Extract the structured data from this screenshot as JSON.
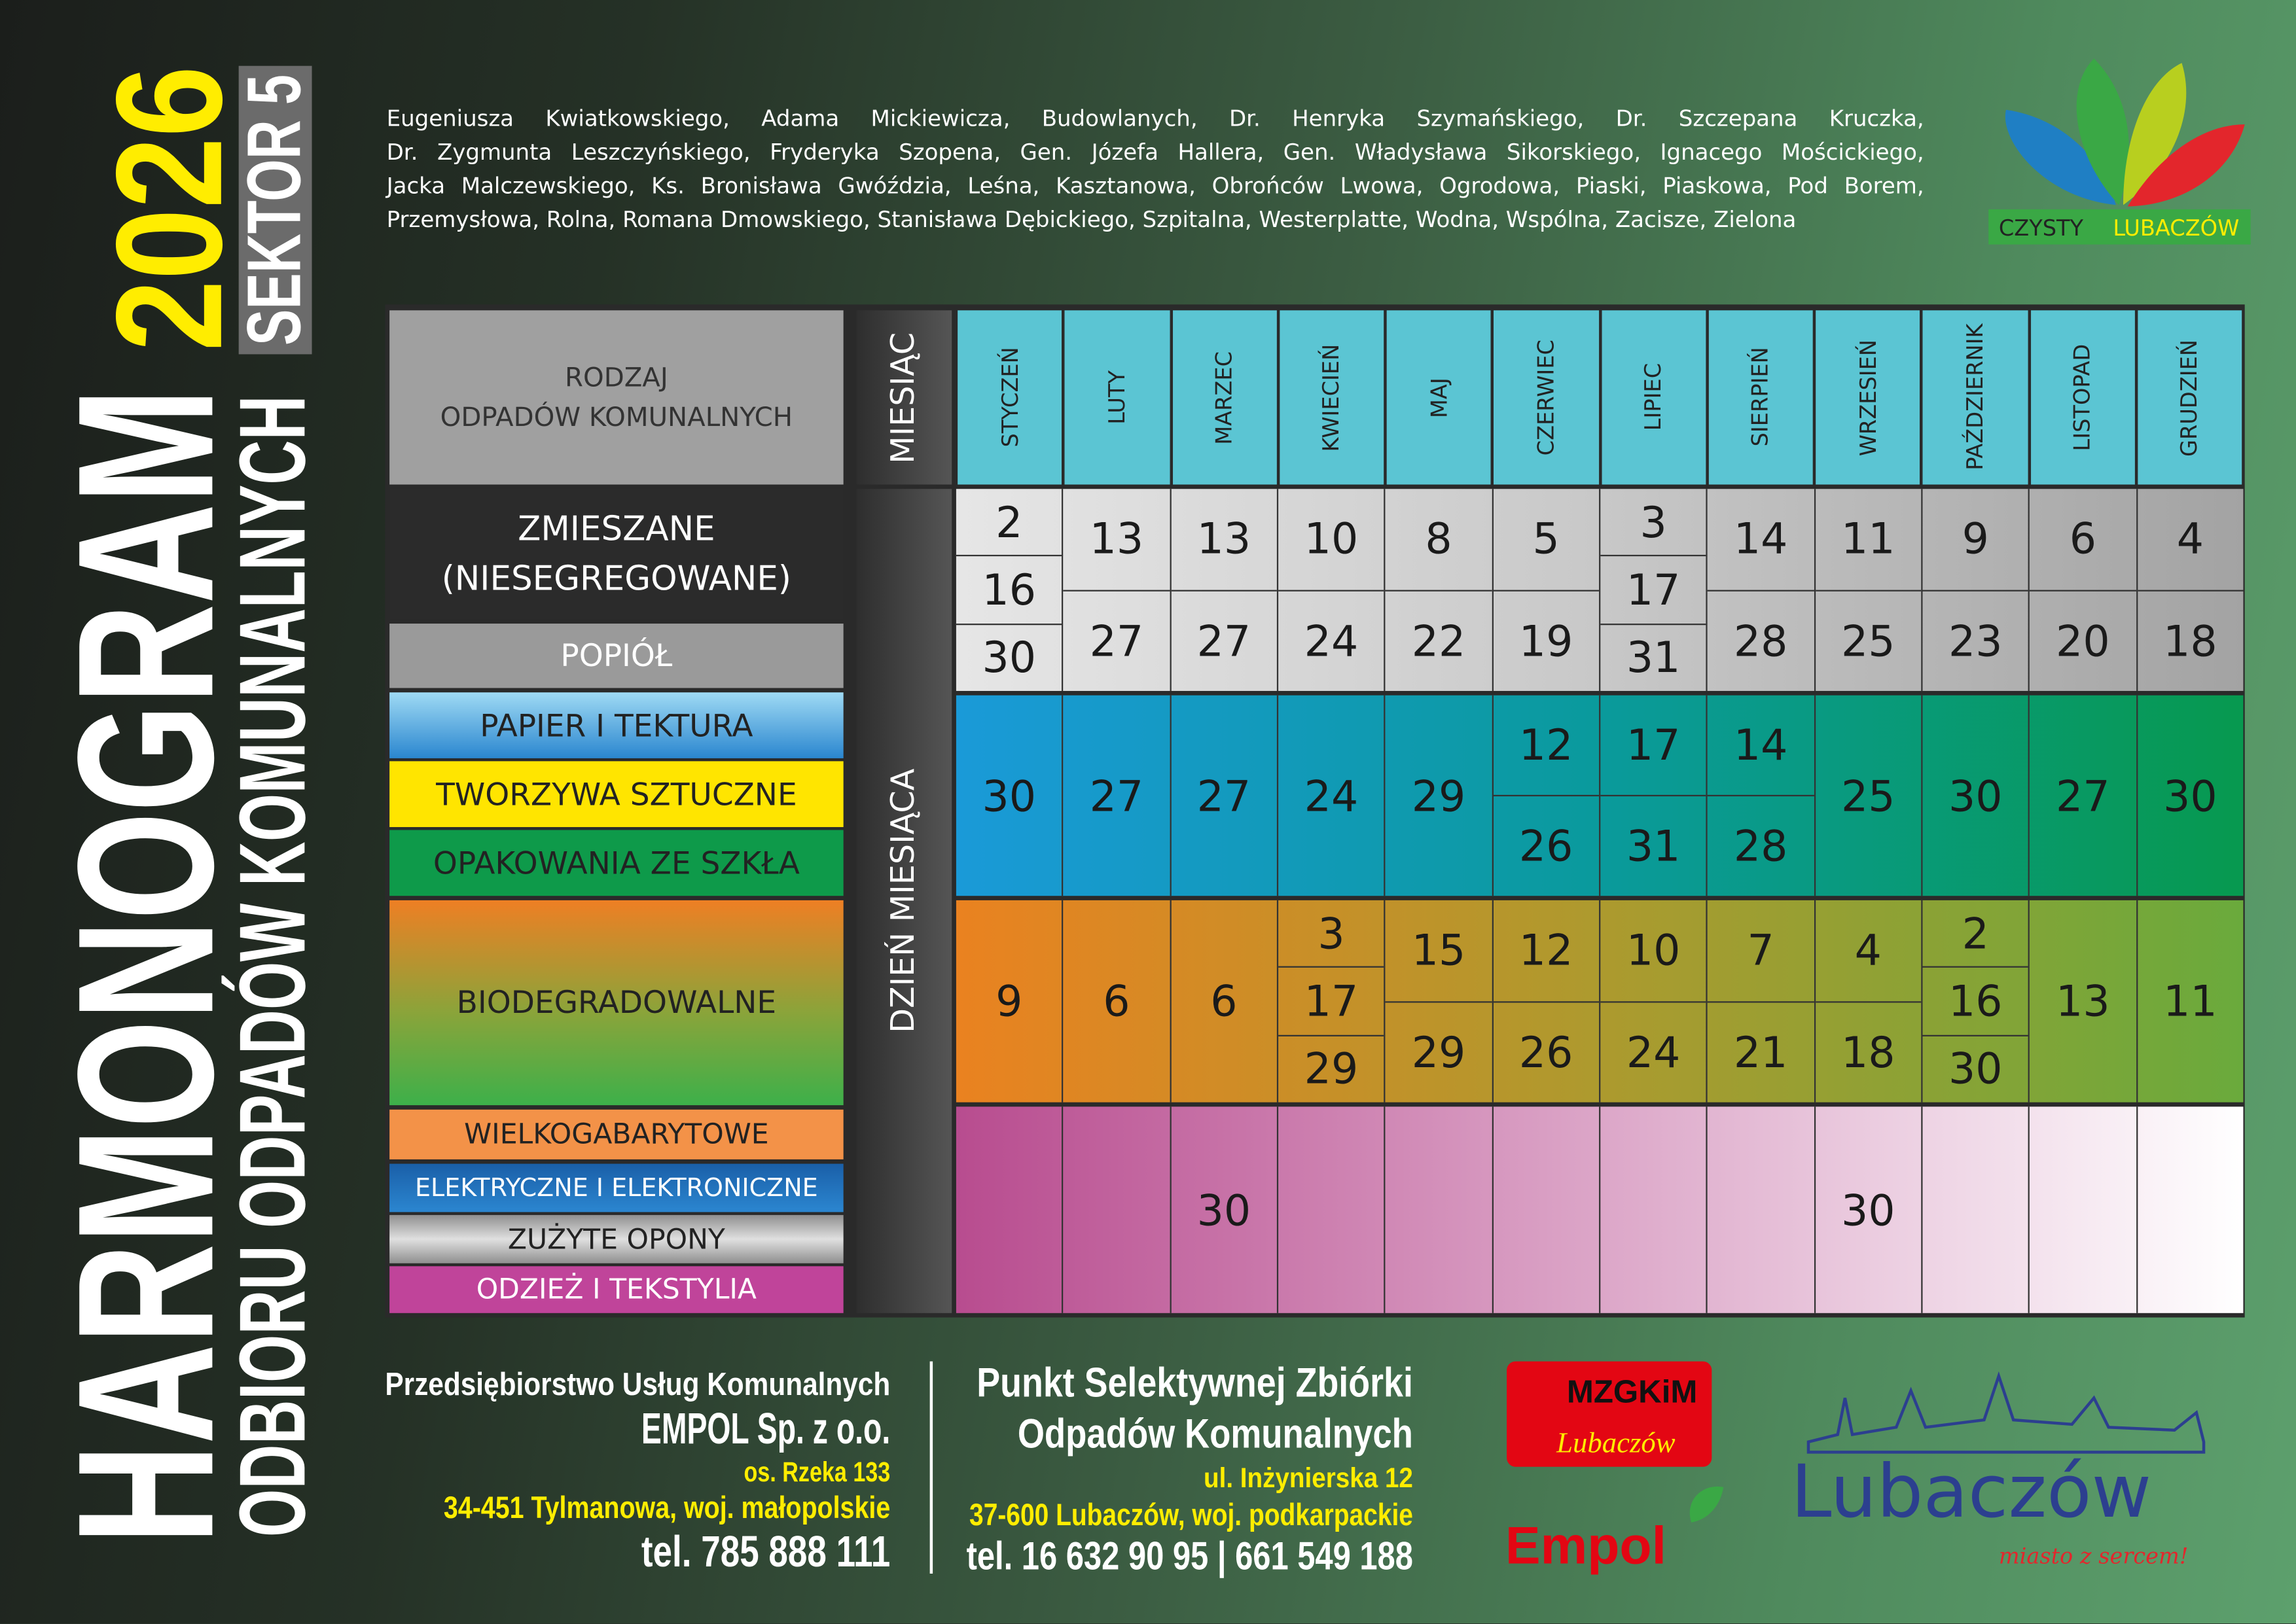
{
  "title": {
    "main": "HARMONOGRAM",
    "year": "2026",
    "sector": "SEKTOR 5",
    "subtitle": "ODBIORU ODPADÓW KOMUNALNYCH"
  },
  "streets": [
    "Eugeniusza Kwiatkowskiego, Adama Mickiewicza, Budowlanych, Dr. Henryka Szymańskiego, Dr. Szczepana Kruczka,",
    "Dr. Zygmunta Leszczyńskiego, Fryderyka Szopena, Gen. Józefa Hallera, Gen. Władysława Sikorskiego, Ignacego Mościckiego,",
    "Jacka Malczewskiego, Ks. Bronisława Gwóździa, Leśna, Kasztanowa, Obrońców Lwowa, Ogrodowa, Piaski, Piaskowa, Pod Borem,",
    "Przemysłowa, Rolna, Romana Dmowskiego, Stanisława Dębickiego, Szpitalna, Westerplatte, Wodna, Wspólna, Zacisze, Zielona"
  ],
  "logo_czysty": {
    "word1": "CZYSTY",
    "word2": "LUBACZÓW"
  },
  "table": {
    "header_label_1": "RODZAJ",
    "header_label_2": "ODPADÓW KOMUNALNYCH",
    "month_axis": "MIESIĄC",
    "day_axis": "DZIEŃ MIESIĄCA",
    "months": [
      "STYCZEŃ",
      "LUTY",
      "MARZEC",
      "KWIECIEŃ",
      "MAJ",
      "CZERWIEC",
      "LIPIEC",
      "SIERPIEŃ",
      "WRZESIEŃ",
      "PAŹDZIERNIK",
      "LISTOPAD",
      "GRUDZIEŃ"
    ],
    "waste_types": {
      "mixed_1": "ZMIESZANE",
      "mixed_2": "(NIESEGREGOWANE)",
      "ash": "POPIÓŁ",
      "paper": "PAPIER I TEKTURA",
      "plastic": "TWORZYWA SZTUCZNE",
      "glass": "OPAKOWANIA ZE SZKŁA",
      "bio": "BIODEGRADOWALNE",
      "bulky": "WIELKOGABARYTOWE",
      "electro": "ELEKTRYCZNE I ELEKTRONICZNE",
      "tires": "ZUŻYTE OPONY",
      "textiles": "ODZIEŻ I TEKSTYLIA"
    },
    "sections": [
      {
        "key": "mixed",
        "colors": [
          "#e6e6e6",
          "#c8c8c8",
          "#a3a3a3"
        ],
        "days": [
          [
            2,
            16,
            30
          ],
          [
            13,
            27
          ],
          [
            13,
            27
          ],
          [
            10,
            24
          ],
          [
            8,
            22
          ],
          [
            5,
            19
          ],
          [
            3,
            17,
            31
          ],
          [
            14,
            28
          ],
          [
            11,
            25
          ],
          [
            9,
            23
          ],
          [
            6,
            20
          ],
          [
            4,
            18
          ]
        ]
      },
      {
        "key": "segregated",
        "colors": [
          "#1a9ad8",
          "#0a9a9c",
          "#07994f"
        ],
        "days": [
          [
            30
          ],
          [
            27
          ],
          [
            27
          ],
          [
            24
          ],
          [
            29
          ],
          [
            12,
            26
          ],
          [
            17,
            31
          ],
          [
            14,
            28
          ],
          [
            25
          ],
          [
            30
          ],
          [
            27
          ],
          [
            30
          ]
        ]
      },
      {
        "key": "bio",
        "colors": [
          "#ea8220",
          "#ad9a2e",
          "#6aaa3c"
        ],
        "days": [
          [
            9
          ],
          [
            6
          ],
          [
            6
          ],
          [
            3,
            17,
            29
          ],
          [
            15,
            29
          ],
          [
            12,
            26
          ],
          [
            10,
            24
          ],
          [
            7,
            21
          ],
          [
            4,
            18
          ],
          [
            2,
            16,
            30
          ],
          [
            13
          ],
          [
            11
          ]
        ]
      },
      {
        "key": "bulky",
        "colors": [
          "#b84c8f",
          "#dca6c8",
          "#ffffff"
        ],
        "days": [
          [],
          [],
          [
            30
          ],
          [],
          [],
          [],
          [],
          [],
          [
            30
          ],
          [],
          [],
          []
        ]
      }
    ]
  },
  "company": {
    "line1": "Przedsiębiorstwo Usług Komunalnych",
    "line2": "EMPOL Sp. z o.o.",
    "line3": "os. Rzeka 133",
    "line4": "34-451 Tylmanowa, woj. małopolskie",
    "line5": "tel. 785 888 111"
  },
  "pszok": {
    "line1": "Punkt Selektywnej Zbiórki",
    "line2": "Odpadów Komunalnych",
    "line3": "ul. Inżynierska 12",
    "line4": "37-600 Lubaczów, woj. podkarpackie",
    "line5": "tel. 16 632 90 95 | 661 549 188"
  },
  "logos": {
    "mzgkim_1": "MZGKiM",
    "mzgkim_2": "Lubaczów",
    "empol": "Empol",
    "city": "Lubaczów",
    "city_slogan": "miasto z sercem!"
  },
  "colors": {
    "yellow": "#ffed00",
    "cyan": "#5bc5d3",
    "red": "#e30613"
  }
}
